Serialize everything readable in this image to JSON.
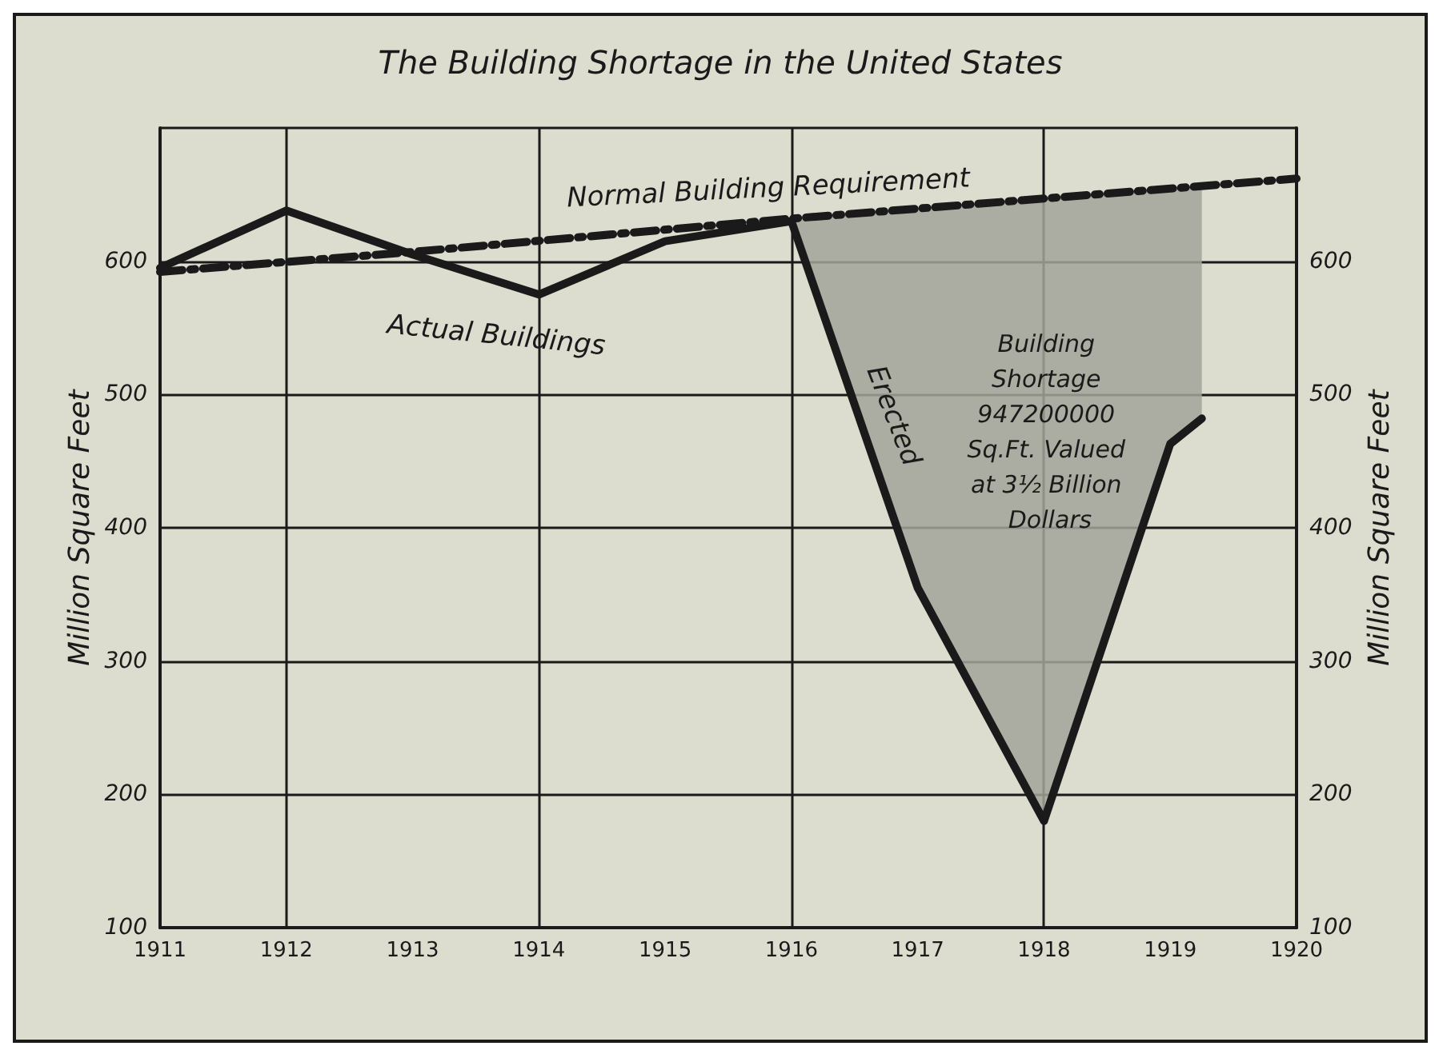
{
  "chart_data": {
    "type": "line",
    "title": "The Building Shortage in the United States",
    "ylabel": "Million Square Feet",
    "y2label": "Million Square Feet",
    "xlim": [
      1911,
      1920
    ],
    "xticks": [
      1911,
      1912,
      1913,
      1914,
      1915,
      1916,
      1917,
      1918,
      1919,
      1920
    ],
    "ylim": [
      100,
      700
    ],
    "yticks": [
      100,
      200,
      300,
      400,
      500,
      600
    ],
    "y2lim": [
      100,
      700
    ],
    "y2ticks": [
      100,
      200,
      300,
      400,
      500,
      600
    ],
    "grid": true,
    "marker": "none",
    "series": [
      {
        "type": "area",
        "color": "#a3a59a",
        "x": [
          1916,
          1917,
          1918,
          1919,
          1919.25
        ],
        "values": [
          632,
          640,
          648,
          655,
          657
        ]
      },
      {
        "color": "#1a1a1a",
        "line_style": "dashed",
        "x": [
          1911,
          1913,
          1916,
          1920
        ],
        "values": [
          592,
          607,
          632,
          662
        ]
      },
      {
        "color": "#1a1a1a",
        "line_style": "solid",
        "x": [
          1911,
          1912,
          1913,
          1914,
          1915,
          1916,
          1917,
          1918,
          1919,
          1919.25
        ],
        "values": [
          595,
          638,
          605,
          575,
          615,
          630,
          355,
          180,
          463,
          482
        ]
      }
    ],
    "annotations": [
      "Normal Building Requirement",
      "Actual Buildings",
      "Erected",
      "Building Shortage 947200000 Sq.Ft. Valued at 3½ Billion Dollars"
    ]
  }
}
